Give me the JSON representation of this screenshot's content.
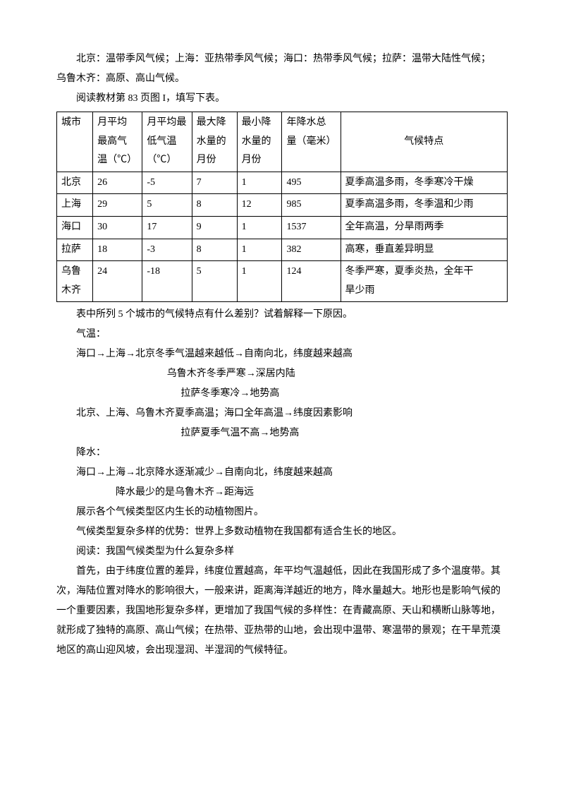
{
  "intro": {
    "line1": "北京：温带季风气候；上海：亚热带季风气候；海口：热带季风气候；拉萨：温带大陆性气候；",
    "line2": "乌鲁木齐：高原、高山气候。",
    "line3": "阅读教材第 83 页图 I，填写下表。"
  },
  "table": {
    "columns": [
      "城市",
      "月平均最高气温（℃）",
      "月平均最低气温（℃）",
      "最大降水量的月份",
      "最小降水量的月份",
      "年降水总量（毫米）",
      "气候特点"
    ],
    "h0a": "城市",
    "h1a": "月平均",
    "h1b": "最高气",
    "h1c": "温（℃）",
    "h2a": "月平均最",
    "h2b": "低气温",
    "h2c": "（℃）",
    "h3a": "最大降",
    "h3b": "水量的",
    "h3c": "月份",
    "h4a": "最小降",
    "h4b": "水量的",
    "h4c": "月份",
    "h5a": "年降水总",
    "h5b": "量（毫米）",
    "h6": "气候特点",
    "rows": [
      {
        "city": "北京",
        "hi": "26",
        "lo": "-5",
        "maxm": "7",
        "minm": "1",
        "total": "495",
        "feat": "夏季高温多雨，冬季寒冷干燥"
      },
      {
        "city": "上海",
        "hi": "29",
        "lo": "5",
        "maxm": "8",
        "minm": "12",
        "total": "985",
        "feat": "夏季高温多雨，冬季温和少雨"
      },
      {
        "city": "海口",
        "hi": "30",
        "lo": "17",
        "maxm": "9",
        "minm": "1",
        "total": "1537",
        "feat": "全年高温，分旱雨两季"
      },
      {
        "city": "拉萨",
        "hi": "18",
        "lo": "-3",
        "maxm": "8",
        "minm": "1",
        "total": "382",
        "feat": "高寒，垂直差异明显"
      },
      {
        "city": "乌鲁木齐",
        "city_a": "乌鲁",
        "city_b": "木齐",
        "hi": "24",
        "lo": "-18",
        "maxm": "5",
        "minm": "1",
        "total": "124",
        "feat": "冬季严寒，夏季炎热，全年干旱少雨",
        "feat_a": "冬季严寒，夏季炎热，全年干",
        "feat_b": "旱少雨"
      }
    ]
  },
  "after": {
    "q": "表中所列 5 个城市的气候特点有什么差别？试着解释一下原因。",
    "temp_label": "气温：",
    "t1": "海口→上海→北京冬季气温越来越低→自南向北，纬度越来越高",
    "t2": "乌鲁木齐冬季严寒→深居内陆",
    "t3": "拉萨冬季寒冷→地势高",
    "t4": "北京、上海、乌鲁木齐夏季高温；海口全年高温→纬度因素影响",
    "t5": "拉萨夏季气温不高→地势高",
    "rain_label": "降水：",
    "r1": "海口→上海→北京降水逐渐减少→自南向北，纬度越来越高",
    "r2": "降水最少的是乌鲁木齐→距海远",
    "show": "展示各个气候类型区内生长的动植物图片。",
    "adv": "气候类型复杂多样的优势：世界上多数动植物在我国都有适合生长的地区。",
    "read": "阅读：我国气候类型为什么复杂多样",
    "p1": "首先，由于纬度位置的差异，纬度位置越高，年平均气温越低，因此在我国形成了多个温度带。其次，海陆位置对降水的影响很大，一般来讲，距离海洋越近的地方，降水量越大。地形也是影响气候的一个重要因素，我国地形复杂多样，更增加了我国气候的多样性：在青藏高原、天山和横断山脉等地，就形成了独特的高原、高山气候；在热带、亚热带的山地，会出现中温带、寒温带的景观；在干旱荒漠地区的高山迎风坡，会出现湿润、半湿润的气候特征。"
  }
}
